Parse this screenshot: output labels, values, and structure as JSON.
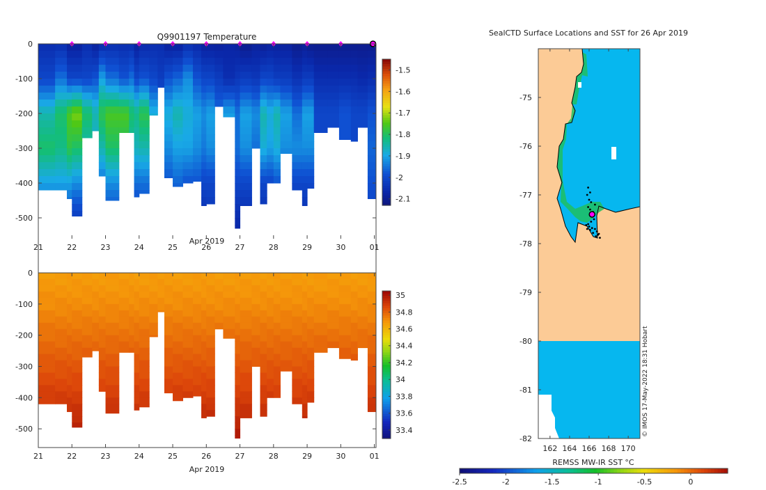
{
  "colors": {
    "land": "#fccb96",
    "ocean_blue": "#06b7ef",
    "profile_marker": "#ff00ff",
    "track": "#000000"
  },
  "chart_data": [
    {
      "type": "heatmap",
      "name": "temperature-section",
      "title": "Q9901197  Temperature",
      "xlabel": "Apr 2019",
      "ylabel": "",
      "x_ticks": [
        "21",
        "22",
        "23",
        "24",
        "25",
        "26",
        "27",
        "28",
        "29",
        "30",
        "01"
      ],
      "x_tick_positions": [
        0,
        1,
        2,
        3,
        4,
        5,
        6,
        7,
        8,
        9,
        10
      ],
      "xlim": [
        0,
        10.05
      ],
      "y_ticks": [
        0,
        -100,
        -200,
        -300,
        -400,
        -500
      ],
      "ylim": [
        -560,
        0
      ],
      "colorbar": {
        "ticks": [
          -1.5,
          -1.6,
          -1.7,
          -1.8,
          -1.9,
          -2,
          -2.1
        ],
        "clim": [
          -2.13,
          -1.45
        ],
        "colormap": "parula-like"
      },
      "profile_marker_times": [
        1,
        2,
        3,
        4,
        5,
        6,
        7,
        8,
        9,
        10
      ],
      "profiles": [
        {
          "t": 0.0,
          "max_depth": 420,
          "values": [
            -2.05,
            -2.0,
            -1.85,
            -1.8,
            -1.9,
            -2.0
          ]
        },
        {
          "t": 0.5,
          "max_depth": 420,
          "values": [
            -2.05,
            -1.95,
            -1.8,
            -1.82,
            -1.9,
            -2.0
          ]
        },
        {
          "t": 0.85,
          "max_depth": 445,
          "values": [
            -2.08,
            -2.0,
            -1.75,
            -1.78,
            -1.9,
            -2.0
          ]
        },
        {
          "t": 1.0,
          "max_depth": 495,
          "values": [
            -2.08,
            -2.0,
            -1.72,
            -1.8,
            -1.92,
            -2.02
          ]
        },
        {
          "t": 1.3,
          "max_depth": 270,
          "values": [
            -2.05,
            -2.0,
            -1.8,
            -1.85,
            -1.95,
            -2.0
          ]
        },
        {
          "t": 1.6,
          "max_depth": 250,
          "values": [
            -2.08,
            -1.98,
            -1.85,
            -1.88,
            -1.95,
            -2.0
          ]
        },
        {
          "t": 1.8,
          "max_depth": 380,
          "values": [
            -2.06,
            -1.9,
            -1.78,
            -1.85,
            -1.95,
            -2.02
          ]
        },
        {
          "t": 2.0,
          "max_depth": 450,
          "values": [
            -2.05,
            -1.95,
            -1.75,
            -1.8,
            -1.92,
            -2.0
          ]
        },
        {
          "t": 2.4,
          "max_depth": 255,
          "values": [
            -2.05,
            -1.98,
            -1.75,
            -1.8,
            -1.95,
            -2.0
          ]
        },
        {
          "t": 2.7,
          "max_depth": 255,
          "values": [
            -2.05,
            -1.95,
            -1.8,
            -1.85,
            -1.95,
            -2.0
          ]
        },
        {
          "t": 2.85,
          "max_depth": 440,
          "values": [
            -2.08,
            -2.0,
            -1.82,
            -1.86,
            -1.95,
            -2.02
          ]
        },
        {
          "t": 3.0,
          "max_depth": 430,
          "values": [
            -2.06,
            -1.98,
            -1.78,
            -1.85,
            -1.95,
            -2.0
          ]
        },
        {
          "t": 3.3,
          "max_depth": 205,
          "values": [
            -2.05,
            -2.0,
            -1.88,
            -1.92,
            -2.0,
            -2.0
          ]
        },
        {
          "t": 3.55,
          "max_depth": 125,
          "values": [
            -2.05,
            -2.02,
            -1.95,
            -1.95,
            -2.0,
            -2.0
          ]
        },
        {
          "t": 3.75,
          "max_depth": 385,
          "values": [
            -2.08,
            -1.98,
            -1.88,
            -1.92,
            -1.98,
            -2.02
          ]
        },
        {
          "t": 4.0,
          "max_depth": 410,
          "values": [
            -2.08,
            -1.96,
            -1.85,
            -1.9,
            -1.96,
            -2.02
          ]
        },
        {
          "t": 4.3,
          "max_depth": 400,
          "values": [
            -2.05,
            -1.92,
            -1.88,
            -1.9,
            -1.98,
            -2.03
          ]
        },
        {
          "t": 4.6,
          "max_depth": 395,
          "values": [
            -2.06,
            -1.98,
            -1.9,
            -1.92,
            -1.98,
            -2.03
          ]
        },
        {
          "t": 4.85,
          "max_depth": 465,
          "values": [
            -2.08,
            -2.0,
            -1.92,
            -1.94,
            -2.0,
            -2.05
          ]
        },
        {
          "t": 5.0,
          "max_depth": 460,
          "values": [
            -2.08,
            -2.0,
            -1.9,
            -1.92,
            -2.0,
            -2.04
          ]
        },
        {
          "t": 5.25,
          "max_depth": 180,
          "values": [
            -2.08,
            -2.02,
            -1.95,
            -1.98,
            -2.0,
            -2.0
          ]
        },
        {
          "t": 5.5,
          "max_depth": 210,
          "values": [
            -2.07,
            -2.05,
            -1.9,
            -1.95,
            -2.0,
            -2.0
          ]
        },
        {
          "t": 5.85,
          "max_depth": 530,
          "values": [
            -2.08,
            -2.03,
            -1.95,
            -1.95,
            -2.0,
            -2.05
          ]
        },
        {
          "t": 6.0,
          "max_depth": 465,
          "values": [
            -2.1,
            -2.02,
            -1.9,
            -1.92,
            -2.0,
            -2.05
          ]
        },
        {
          "t": 6.35,
          "max_depth": 300,
          "values": [
            -2.08,
            -2.03,
            -1.92,
            -1.95,
            -2.02,
            -2.02
          ]
        },
        {
          "t": 6.6,
          "max_depth": 460,
          "values": [
            -2.09,
            -2.0,
            -1.85,
            -1.88,
            -2.0,
            -2.05
          ]
        },
        {
          "t": 6.8,
          "max_depth": 400,
          "values": [
            -2.08,
            -2.0,
            -1.88,
            -1.9,
            -2.0,
            -2.04
          ]
        },
        {
          "t": 7.0,
          "max_depth": 400,
          "values": [
            -2.08,
            -2.02,
            -1.85,
            -1.88,
            -1.98,
            -2.04
          ]
        },
        {
          "t": 7.2,
          "max_depth": 315,
          "values": [
            -2.08,
            -2.02,
            -1.9,
            -1.92,
            -2.0,
            -2.02
          ]
        },
        {
          "t": 7.55,
          "max_depth": 420,
          "values": [
            -2.1,
            -2.04,
            -1.95,
            -1.92,
            -2.0,
            -2.04
          ]
        },
        {
          "t": 7.85,
          "max_depth": 465,
          "values": [
            -2.09,
            -2.02,
            -1.9,
            -1.92,
            -2.0,
            -2.05
          ]
        },
        {
          "t": 8.0,
          "max_depth": 415,
          "values": [
            -2.1,
            -2.02,
            -1.9,
            -1.92,
            -2.0,
            -2.04
          ]
        },
        {
          "t": 8.2,
          "max_depth": 255,
          "values": [
            -2.1,
            -2.05,
            -2.0,
            -2.0,
            -2.0,
            -2.0
          ]
        },
        {
          "t": 8.6,
          "max_depth": 240,
          "values": [
            -2.1,
            -2.05,
            -2.0,
            -2.0,
            -2.0,
            -2.0
          ]
        },
        {
          "t": 8.95,
          "max_depth": 275,
          "values": [
            -2.1,
            -2.05,
            -1.98,
            -1.98,
            -2.0,
            -2.0
          ]
        },
        {
          "t": 9.3,
          "max_depth": 280,
          "values": [
            -2.1,
            -2.05,
            -2.0,
            -2.0,
            -2.0,
            -2.0
          ]
        },
        {
          "t": 9.5,
          "max_depth": 240,
          "values": [
            -2.1,
            -2.06,
            -2.0,
            -2.0,
            -2.0,
            -2.0
          ]
        },
        {
          "t": 9.8,
          "max_depth": 445,
          "values": [
            -2.1,
            -2.05,
            -1.98,
            -1.96,
            -1.98,
            -2.02
          ]
        }
      ]
    },
    {
      "type": "heatmap",
      "name": "salinity-section",
      "title": "",
      "xlabel": "Apr 2019",
      "ylabel": "",
      "x_ticks": [
        "21",
        "22",
        "23",
        "24",
        "25",
        "26",
        "27",
        "28",
        "29",
        "30",
        "01"
      ],
      "x_tick_positions": [
        0,
        1,
        2,
        3,
        4,
        5,
        6,
        7,
        8,
        9,
        10
      ],
      "xlim": [
        0,
        10.05
      ],
      "y_ticks": [
        0,
        -100,
        -200,
        -300,
        -400,
        -500
      ],
      "ylim": [
        -560,
        0
      ],
      "colorbar": {
        "ticks": [
          35,
          34.8,
          34.6,
          34.4,
          34.2,
          34,
          33.8,
          33.6,
          33.4
        ],
        "clim": [
          33.3,
          35.05
        ],
        "colormap": "jet-like"
      },
      "depth_profile": [
        34.68,
        34.72,
        34.78,
        34.84,
        34.9,
        34.98
      ]
    },
    {
      "type": "map",
      "name": "sst-map",
      "title": "SealCTD Surface Locations and SST for 26 Apr 2019",
      "xlabel": "",
      "ylabel": "",
      "x_ticks": [
        "162",
        "164",
        "166",
        "168",
        "170"
      ],
      "x_tick_values": [
        162,
        164,
        166,
        168,
        170
      ],
      "xlim": [
        160.8,
        171.2
      ],
      "y_ticks": [
        "-75",
        "-76",
        "-77",
        "-78",
        "-79",
        "-80",
        "-81",
        "-82"
      ],
      "y_tick_values": [
        -75,
        -76,
        -77,
        -78,
        -79,
        -80,
        -81,
        -82
      ],
      "ylim": [
        -82.0,
        -74.0
      ],
      "colorbar": {
        "label": "REMSS MW-IR SST °C",
        "ticks": [
          "-2.5",
          "-2",
          "-1.5",
          "-1",
          "-0.5",
          "0"
        ],
        "tick_values": [
          -2.5,
          -2,
          -1.5,
          -1,
          -0.5,
          0
        ],
        "clim": [
          -2.5,
          0.4
        ]
      },
      "watermark": "© IMOS 17-May-2022 18:31 Hobart",
      "ocean_sst_value": -1.7,
      "last_position": {
        "lon": 166.3,
        "lat": -77.4
      },
      "track_positions": [
        {
          "lon": 165.9,
          "lat": -76.85
        },
        {
          "lon": 166.1,
          "lat": -76.95
        },
        {
          "lon": 165.8,
          "lat": -77.0
        },
        {
          "lon": 166.0,
          "lat": -77.1
        },
        {
          "lon": 166.2,
          "lat": -77.15
        },
        {
          "lon": 165.9,
          "lat": -77.25
        },
        {
          "lon": 166.1,
          "lat": -77.3
        },
        {
          "lon": 166.4,
          "lat": -77.35
        },
        {
          "lon": 166.6,
          "lat": -77.2
        },
        {
          "lon": 166.5,
          "lat": -77.5
        },
        {
          "lon": 166.2,
          "lat": -77.55
        },
        {
          "lon": 165.9,
          "lat": -77.6
        },
        {
          "lon": 165.7,
          "lat": -77.62
        },
        {
          "lon": 166.0,
          "lat": -77.65
        },
        {
          "lon": 166.3,
          "lat": -77.68
        },
        {
          "lon": 166.6,
          "lat": -77.7
        },
        {
          "lon": 166.8,
          "lat": -77.75
        },
        {
          "lon": 167.0,
          "lat": -77.8
        },
        {
          "lon": 166.7,
          "lat": -77.85
        },
        {
          "lon": 166.1,
          "lat": -77.72
        },
        {
          "lon": 165.8,
          "lat": -77.7
        },
        {
          "lon": 166.4,
          "lat": -77.78
        },
        {
          "lon": 166.9,
          "lat": -77.82
        },
        {
          "lon": 167.1,
          "lat": -77.88
        }
      ]
    }
  ]
}
